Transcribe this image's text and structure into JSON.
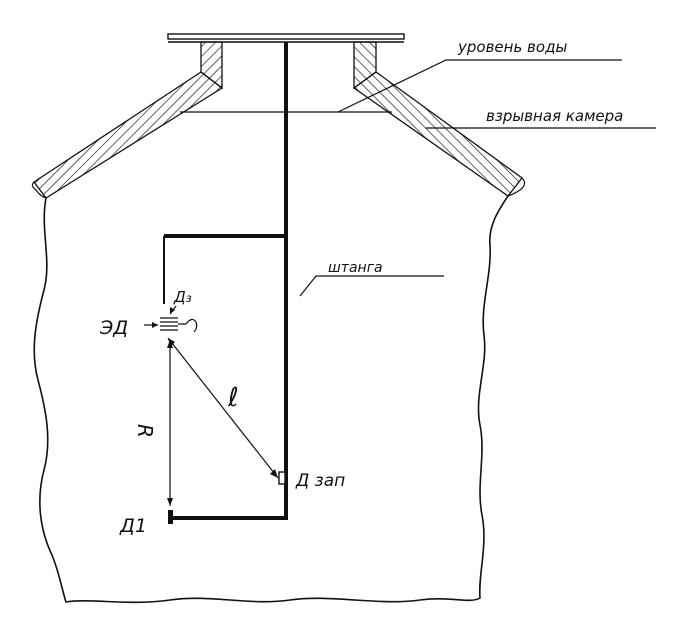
{
  "labels": {
    "water_level": "уровень воды",
    "chamber": "взрывная камера",
    "rod": "штанга",
    "ed": "ЭД",
    "d3": "Д₃",
    "l": "ℓ",
    "r": "R",
    "d_zap": "Д зап",
    "d1": "Д1"
  },
  "colors": {
    "ink": "#111111",
    "paper": "#ffffff"
  }
}
